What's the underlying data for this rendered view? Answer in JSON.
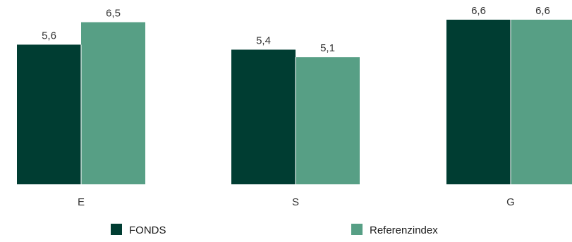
{
  "chart_data": {
    "type": "bar",
    "categories": [
      "E",
      "S",
      "G"
    ],
    "series": [
      {
        "name": "FONDS",
        "values": [
          5.6,
          5.4,
          6.6
        ],
        "color": "#003d32"
      },
      {
        "name": "Referenzindex",
        "values": [
          6.5,
          5.1,
          6.6
        ],
        "color": "#579f85"
      }
    ],
    "value_labels": [
      [
        "5,6",
        "5,4",
        "6,6"
      ],
      [
        "6,5",
        "5,1",
        "6,6"
      ]
    ],
    "ylim": [
      0,
      6.6
    ],
    "grid": false,
    "legend_position": "bottom",
    "title": "",
    "xlabel": "",
    "ylabel": ""
  }
}
